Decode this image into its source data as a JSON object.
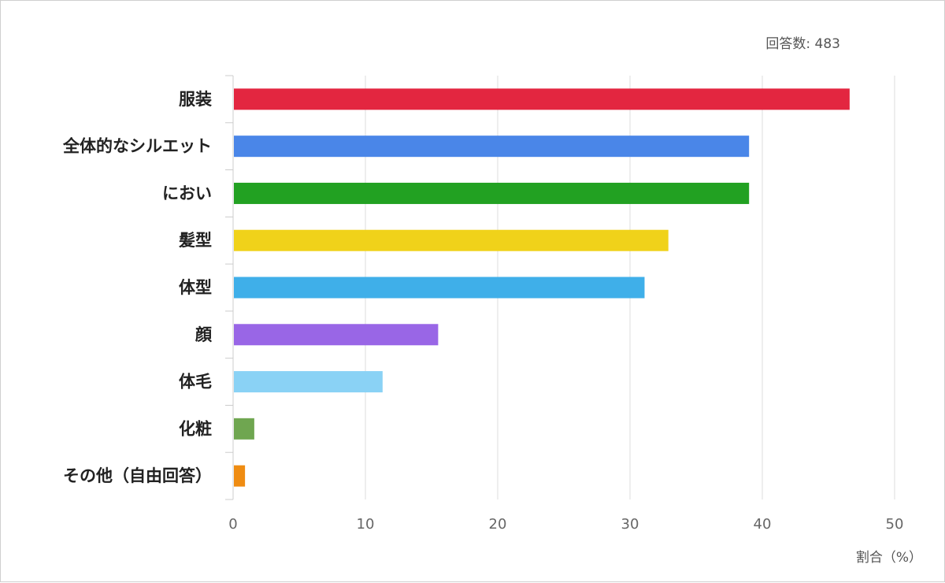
{
  "response_count": "回答数: 483",
  "chart_data": {
    "type": "bar",
    "orientation": "horizontal",
    "categories": [
      "服装",
      "全体的なシルエット",
      "におい",
      "髪型",
      "体型",
      "顔",
      "体毛",
      "化粧",
      "その他（自由回答）"
    ],
    "values": [
      46.6,
      39.0,
      39.0,
      32.9,
      31.1,
      15.5,
      11.3,
      1.6,
      0.9
    ],
    "colors": [
      "#e32640",
      "#4a86e8",
      "#22a122",
      "#f0d21a",
      "#3fafe9",
      "#9966e6",
      "#8ad2f5",
      "#6fa650",
      "#ef8c12"
    ],
    "xlabel": "割合（%）",
    "ylabel": "",
    "xlim": [
      0,
      50
    ],
    "xticks": [
      0,
      10,
      20,
      30,
      40,
      50
    ],
    "grid": true
  }
}
